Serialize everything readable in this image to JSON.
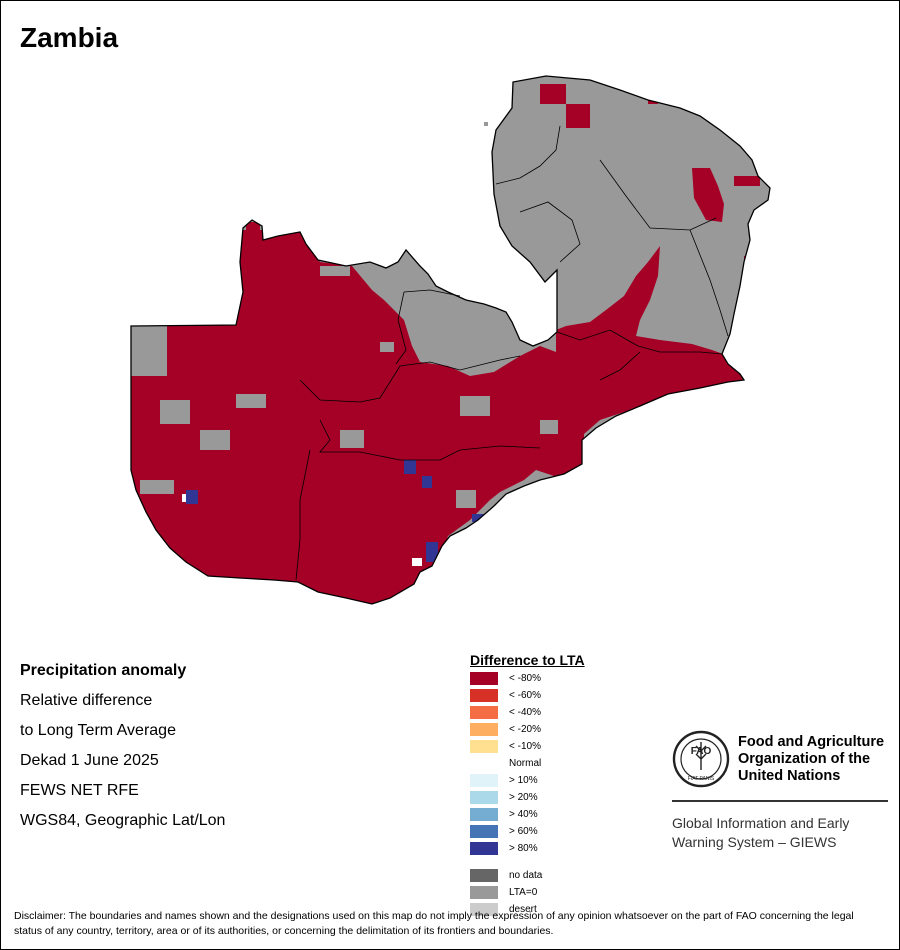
{
  "title": "Zambia",
  "info": {
    "heading": "Precipitation anomaly",
    "line1": "Relative difference",
    "line2": "to Long Term Average",
    "period": "Dekad 1 June 2025",
    "source": "FEWS NET RFE",
    "projection": "WGS84, Geographic Lat/Lon"
  },
  "legend": {
    "title": "Difference to LTA",
    "classes": [
      {
        "label": "< -80%",
        "color": "#A50026"
      },
      {
        "label": "< -60%",
        "color": "#D73027"
      },
      {
        "label": "< -40%",
        "color": "#F46D43"
      },
      {
        "label": "< -20%",
        "color": "#FDAE61"
      },
      {
        "label": "< -10%",
        "color": "#FEE090"
      },
      {
        "label": "Normal",
        "color": "#FFFFFF"
      },
      {
        "label": "> 10%",
        "color": "#E0F3F8"
      },
      {
        "label": "> 20%",
        "color": "#ABD9E9"
      },
      {
        "label": "> 40%",
        "color": "#74ADD1"
      },
      {
        "label": "> 60%",
        "color": "#4575B4"
      },
      {
        "label": "> 80%",
        "color": "#313695"
      }
    ],
    "extra": [
      {
        "label": "no data",
        "color": "#666666"
      },
      {
        "label": "LTA=0",
        "color": "#999999"
      },
      {
        "label": "desert",
        "color": "#CCCCCC"
      }
    ]
  },
  "map": {
    "dominant_class": "< -80%",
    "other_area_class": "LTA=0",
    "icons": [
      "zambia-outline",
      "province-boundaries",
      "anomaly-raster"
    ]
  },
  "fao": {
    "logo_text": "FAO",
    "logo_motto": "FIAT PANIS",
    "name_line1": "Food and Agriculture",
    "name_line2": "Organization of the",
    "name_line3": "United Nations",
    "giews_line1": "Global Information and Early",
    "giews_line2": "Warning System – GIEWS"
  },
  "disclaimer": "Disclaimer: The boundaries and names shown and the designations used on this map do not imply the expression of any opinion whatsoever on the part of FAO concerning the legal status of any country, territory, area or of its authorities, or concerning the delimitation of its frontiers and boundaries."
}
